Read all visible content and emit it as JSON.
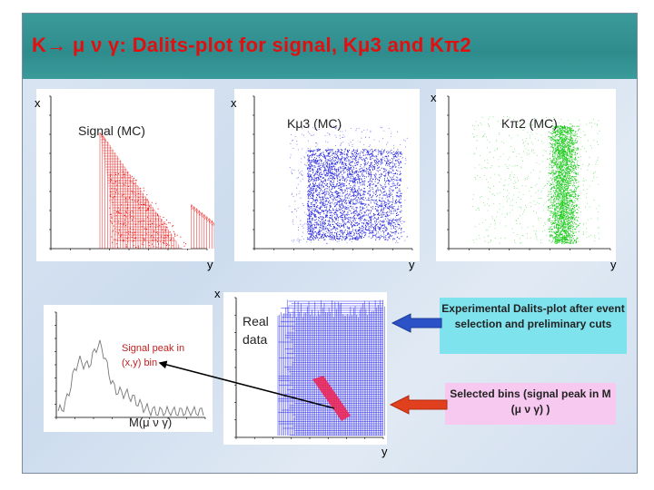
{
  "slide": {
    "title": "K→ μ ν γ: Dalits-plot for signal, Kμ3 and Kπ2"
  },
  "panels": {
    "signal": {
      "label": "Signal (MC)",
      "x_axis": "x",
      "y_axis": "y",
      "color": "#e01010"
    },
    "kmu3": {
      "label": "Kμ3 (MC)",
      "x_axis": "x",
      "y_axis": "y",
      "color": "#2222dd"
    },
    "kpi2": {
      "label": "Kπ2 (MC)",
      "x_axis": "x",
      "y_axis": "y",
      "color": "#22cc22"
    },
    "mass": {
      "label": "M(μ ν γ)",
      "signal_label": "Signal peak in (x,y) bin"
    },
    "real": {
      "label": "Real data",
      "x_axis": "x",
      "y_axis": "y",
      "color": "#1a1aee"
    }
  },
  "callouts": {
    "experimental": "Experimental Dalits-plot after event selection and preliminary cuts",
    "selected": "Selected bins (signal peak in M (μ ν γ) )"
  },
  "colors": {
    "title": "#e01010",
    "title_bar": "#2f8c8d",
    "box_cyan": "#7fe3ee",
    "box_pink": "#f7c9f0",
    "arrow_blue": "#2c52c8",
    "arrow_red": "#e0401e"
  }
}
